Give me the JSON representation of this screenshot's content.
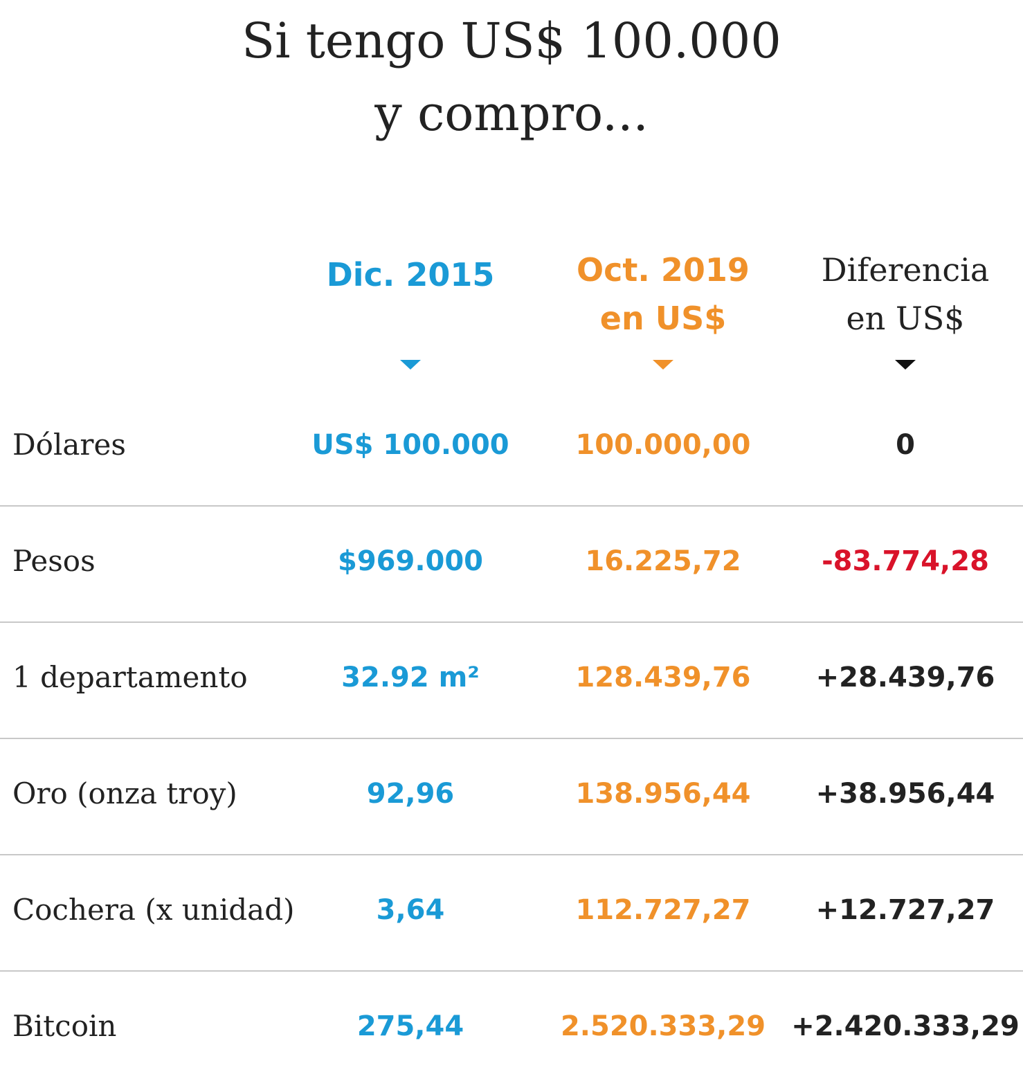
{
  "header": {
    "title": [
      "Si tengo US$ 100.000",
      "y compro..."
    ]
  },
  "table": {
    "columns": [
      [
        "Dic. 2015"
      ],
      [
        "Oct. 2019",
        "en US$"
      ],
      [
        "Diferencia",
        "en US$"
      ]
    ],
    "rows": [
      [
        "Dólares",
        "US$ 100.000",
        "100.000,00",
        "0"
      ],
      [
        "Pesos",
        "$969.000",
        "16.225,72",
        "-83.774,28"
      ],
      [
        "1 departamento",
        "32.92 m²",
        "128.439,76",
        "+28.439,76"
      ],
      [
        "Oro (onza troy)",
        "92,96",
        "138.956,44",
        "+38.956,44"
      ],
      [
        "Cochera (x unidad)",
        "3,64",
        "112.727,27",
        "+12.727,27"
      ],
      [
        "Bitcoin",
        "275,44",
        "2.520.333,29",
        "+2.420.333,29"
      ]
    ]
  }
}
